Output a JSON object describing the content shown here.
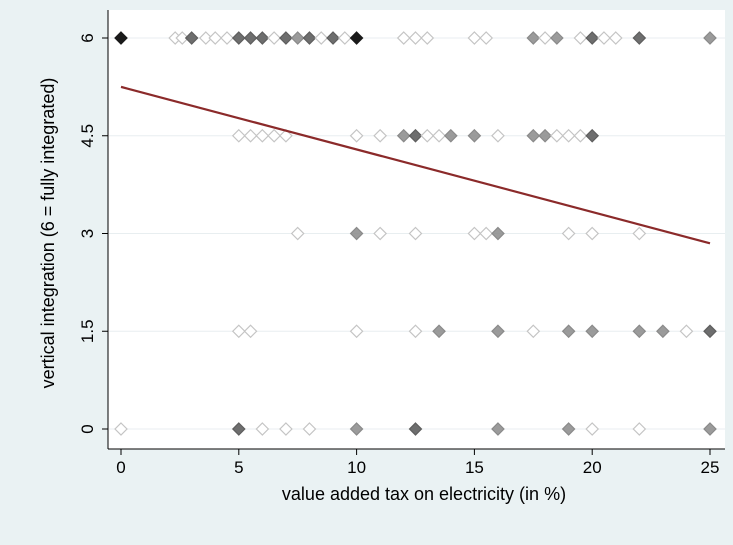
{
  "chart_data": {
    "type": "scatter",
    "title": "",
    "xlabel": "value added tax on electricity (in %)",
    "ylabel": "vertical integration (6 = fully integrated)",
    "xlim": [
      0,
      25
    ],
    "ylim": [
      0,
      6
    ],
    "x_ticks": [
      "0",
      "5",
      "10",
      "15",
      "20",
      "25"
    ],
    "y_ticks": [
      "0",
      "1.5",
      "3",
      "4.5",
      "6"
    ],
    "grid": "horizontal",
    "legend": "none",
    "marker": "diamond",
    "fit_line": {
      "x": [
        0,
        25
      ],
      "y": [
        5.25,
        2.85
      ],
      "color": "#8b2a2a"
    },
    "points": [
      {
        "x": 0,
        "y": 6,
        "shade": "black"
      },
      {
        "x": 2.3,
        "y": 6,
        "shade": "hollow"
      },
      {
        "x": 2.6,
        "y": 6,
        "shade": "hollow"
      },
      {
        "x": 3,
        "y": 6,
        "shade": "dark"
      },
      {
        "x": 3.6,
        "y": 6,
        "shade": "hollow"
      },
      {
        "x": 4,
        "y": 6,
        "shade": "hollow"
      },
      {
        "x": 4.5,
        "y": 6,
        "shade": "hollow"
      },
      {
        "x": 5,
        "y": 6,
        "shade": "dark"
      },
      {
        "x": 5.5,
        "y": 6,
        "shade": "dark"
      },
      {
        "x": 6,
        "y": 6,
        "shade": "dark"
      },
      {
        "x": 6.5,
        "y": 6,
        "shade": "hollow"
      },
      {
        "x": 7,
        "y": 6,
        "shade": "dark"
      },
      {
        "x": 7.5,
        "y": 6,
        "shade": "medium"
      },
      {
        "x": 8,
        "y": 6,
        "shade": "dark"
      },
      {
        "x": 8.5,
        "y": 6,
        "shade": "hollow"
      },
      {
        "x": 9,
        "y": 6,
        "shade": "dark"
      },
      {
        "x": 9.5,
        "y": 6,
        "shade": "hollow"
      },
      {
        "x": 10,
        "y": 6,
        "shade": "black"
      },
      {
        "x": 12,
        "y": 6,
        "shade": "hollow"
      },
      {
        "x": 12.5,
        "y": 6,
        "shade": "hollow"
      },
      {
        "x": 13,
        "y": 6,
        "shade": "hollow"
      },
      {
        "x": 15,
        "y": 6,
        "shade": "hollow"
      },
      {
        "x": 15.5,
        "y": 6,
        "shade": "hollow"
      },
      {
        "x": 17.5,
        "y": 6,
        "shade": "medium"
      },
      {
        "x": 18,
        "y": 6,
        "shade": "hollow"
      },
      {
        "x": 18.5,
        "y": 6,
        "shade": "medium"
      },
      {
        "x": 19.5,
        "y": 6,
        "shade": "hollow"
      },
      {
        "x": 20,
        "y": 6,
        "shade": "dark"
      },
      {
        "x": 20.5,
        "y": 6,
        "shade": "hollow"
      },
      {
        "x": 21,
        "y": 6,
        "shade": "hollow"
      },
      {
        "x": 22,
        "y": 6,
        "shade": "dark"
      },
      {
        "x": 25,
        "y": 6,
        "shade": "medium"
      },
      {
        "x": 5,
        "y": 4.5,
        "shade": "hollow"
      },
      {
        "x": 5.5,
        "y": 4.5,
        "shade": "hollow"
      },
      {
        "x": 6,
        "y": 4.5,
        "shade": "hollow"
      },
      {
        "x": 6.5,
        "y": 4.5,
        "shade": "hollow"
      },
      {
        "x": 7,
        "y": 4.5,
        "shade": "hollow"
      },
      {
        "x": 10,
        "y": 4.5,
        "shade": "hollow"
      },
      {
        "x": 11,
        "y": 4.5,
        "shade": "hollow"
      },
      {
        "x": 12,
        "y": 4.5,
        "shade": "medium"
      },
      {
        "x": 12.5,
        "y": 4.5,
        "shade": "dark"
      },
      {
        "x": 13,
        "y": 4.5,
        "shade": "hollow"
      },
      {
        "x": 13.5,
        "y": 4.5,
        "shade": "hollow"
      },
      {
        "x": 14,
        "y": 4.5,
        "shade": "medium"
      },
      {
        "x": 15,
        "y": 4.5,
        "shade": "medium"
      },
      {
        "x": 16,
        "y": 4.5,
        "shade": "hollow"
      },
      {
        "x": 17.5,
        "y": 4.5,
        "shade": "medium"
      },
      {
        "x": 18,
        "y": 4.5,
        "shade": "medium"
      },
      {
        "x": 18.5,
        "y": 4.5,
        "shade": "hollow"
      },
      {
        "x": 19,
        "y": 4.5,
        "shade": "hollow"
      },
      {
        "x": 19.5,
        "y": 4.5,
        "shade": "hollow"
      },
      {
        "x": 20,
        "y": 4.5,
        "shade": "dark"
      },
      {
        "x": 7.5,
        "y": 3,
        "shade": "hollow"
      },
      {
        "x": 10,
        "y": 3,
        "shade": "medium"
      },
      {
        "x": 11,
        "y": 3,
        "shade": "hollow"
      },
      {
        "x": 12.5,
        "y": 3,
        "shade": "hollow"
      },
      {
        "x": 15,
        "y": 3,
        "shade": "hollow"
      },
      {
        "x": 15.5,
        "y": 3,
        "shade": "hollow"
      },
      {
        "x": 16,
        "y": 3,
        "shade": "medium"
      },
      {
        "x": 19,
        "y": 3,
        "shade": "hollow"
      },
      {
        "x": 20,
        "y": 3,
        "shade": "hollow"
      },
      {
        "x": 22,
        "y": 3,
        "shade": "hollow"
      },
      {
        "x": 5,
        "y": 1.5,
        "shade": "hollow"
      },
      {
        "x": 5.5,
        "y": 1.5,
        "shade": "hollow"
      },
      {
        "x": 10,
        "y": 1.5,
        "shade": "hollow"
      },
      {
        "x": 12.5,
        "y": 1.5,
        "shade": "hollow"
      },
      {
        "x": 13.5,
        "y": 1.5,
        "shade": "medium"
      },
      {
        "x": 16,
        "y": 1.5,
        "shade": "medium"
      },
      {
        "x": 17.5,
        "y": 1.5,
        "shade": "hollow"
      },
      {
        "x": 19,
        "y": 1.5,
        "shade": "medium"
      },
      {
        "x": 20,
        "y": 1.5,
        "shade": "medium"
      },
      {
        "x": 22,
        "y": 1.5,
        "shade": "medium"
      },
      {
        "x": 23,
        "y": 1.5,
        "shade": "medium"
      },
      {
        "x": 24,
        "y": 1.5,
        "shade": "hollow"
      },
      {
        "x": 25,
        "y": 1.5,
        "shade": "dark"
      },
      {
        "x": 0,
        "y": 0,
        "shade": "hollow"
      },
      {
        "x": 5,
        "y": 0,
        "shade": "dark"
      },
      {
        "x": 6,
        "y": 0,
        "shade": "hollow"
      },
      {
        "x": 7,
        "y": 0,
        "shade": "hollow"
      },
      {
        "x": 8,
        "y": 0,
        "shade": "hollow"
      },
      {
        "x": 10,
        "y": 0,
        "shade": "medium"
      },
      {
        "x": 12.5,
        "y": 0,
        "shade": "dark"
      },
      {
        "x": 16,
        "y": 0,
        "shade": "medium"
      },
      {
        "x": 19,
        "y": 0,
        "shade": "medium"
      },
      {
        "x": 20,
        "y": 0,
        "shade": "hollow"
      },
      {
        "x": 22,
        "y": 0,
        "shade": "hollow"
      },
      {
        "x": 25,
        "y": 0,
        "shade": "medium"
      }
    ]
  }
}
